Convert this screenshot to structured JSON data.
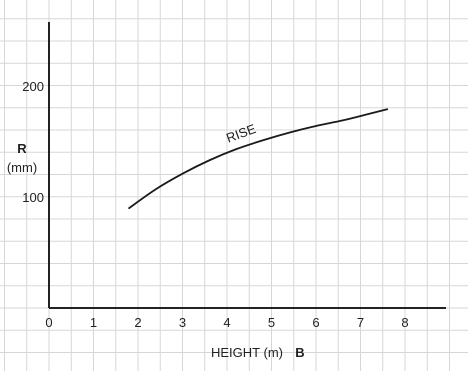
{
  "chart_data": {
    "type": "line",
    "xlabel": "HEIGHT (m)",
    "xlabel_marker": "B",
    "ylabel": "R",
    "ylabel_unit": "(mm)",
    "x_ticks": [
      "0",
      "1",
      "2",
      "3",
      "4",
      "5",
      "6",
      "7",
      "8"
    ],
    "y_ticks": [
      "100",
      "200"
    ],
    "xlim": [
      0,
      9.0
    ],
    "ylim": [
      0,
      255
    ],
    "grid": true,
    "series": [
      {
        "name": "RISE",
        "x": [
          1.8,
          2.4,
          3.0,
          3.6,
          4.2,
          4.8,
          5.4,
          6.0,
          6.6,
          7.2,
          7.6
        ],
        "y": [
          90,
          107,
          121,
          133,
          143,
          151,
          158,
          164,
          169,
          175,
          179
        ]
      }
    ],
    "curve_color": "#1a1a1a",
    "grid_color": "#d7d7d7",
    "axis_color": "#222222"
  }
}
